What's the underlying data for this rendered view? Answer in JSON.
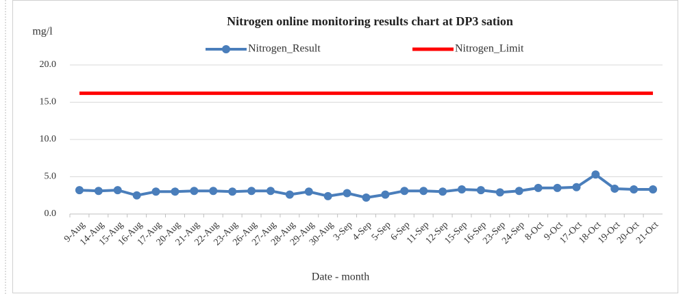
{
  "chart_data": {
    "type": "line",
    "title": "Nitrogen online monitoring results chart at DP3 sation",
    "y_label": "mg/l",
    "x_label": "Date - month",
    "categories": [
      "9-Aug",
      "14-Aug",
      "15-Aug",
      "16-Aug",
      "17-Aug",
      "20-Aug",
      "21-Aug",
      "22-Aug",
      "23-Aug",
      "26-Aug",
      "27-Aug",
      "28-Aug",
      "29-Aug",
      "30-Aug",
      "3-Sep",
      "4-Sep",
      "5-Sep",
      "6-Sep",
      "11-Sep",
      "12-Sep",
      "15-Sep",
      "16-Sep",
      "23-Sep",
      "24-Sep",
      "8-Oct",
      "9-Oct",
      "17-Oct",
      "18-Oct",
      "19-Oct",
      "20-Oct",
      "21-Oct"
    ],
    "series": [
      {
        "name": "Nitrogen_Result",
        "color": "#4a7ebb",
        "marker": true,
        "values": [
          3.2,
          3.1,
          3.2,
          2.5,
          3.0,
          3.0,
          3.1,
          3.1,
          3.0,
          3.1,
          3.1,
          2.6,
          3.0,
          2.4,
          2.8,
          2.2,
          2.6,
          3.1,
          3.1,
          3.0,
          3.3,
          3.2,
          2.9,
          3.1,
          3.5,
          3.5,
          3.6,
          5.3,
          3.4,
          3.3,
          3.3
        ]
      },
      {
        "name": "Nitrogen_Limit",
        "color": "#ff0000",
        "marker": false,
        "values": [
          16.2,
          16.2,
          16.2,
          16.2,
          16.2,
          16.2,
          16.2,
          16.2,
          16.2,
          16.2,
          16.2,
          16.2,
          16.2,
          16.2,
          16.2,
          16.2,
          16.2,
          16.2,
          16.2,
          16.2,
          16.2,
          16.2,
          16.2,
          16.2,
          16.2,
          16.2,
          16.2,
          16.2,
          16.2,
          16.2,
          16.2
        ]
      }
    ],
    "ylim": [
      0,
      20
    ],
    "yticks": [
      {
        "value": 0,
        "label": "0.0"
      },
      {
        "value": 5,
        "label": "5.0"
      },
      {
        "value": 10,
        "label": "10.0"
      },
      {
        "value": 15,
        "label": "15.0"
      },
      {
        "value": 20,
        "label": "20.0"
      }
    ],
    "grid": true,
    "legend": "top"
  }
}
